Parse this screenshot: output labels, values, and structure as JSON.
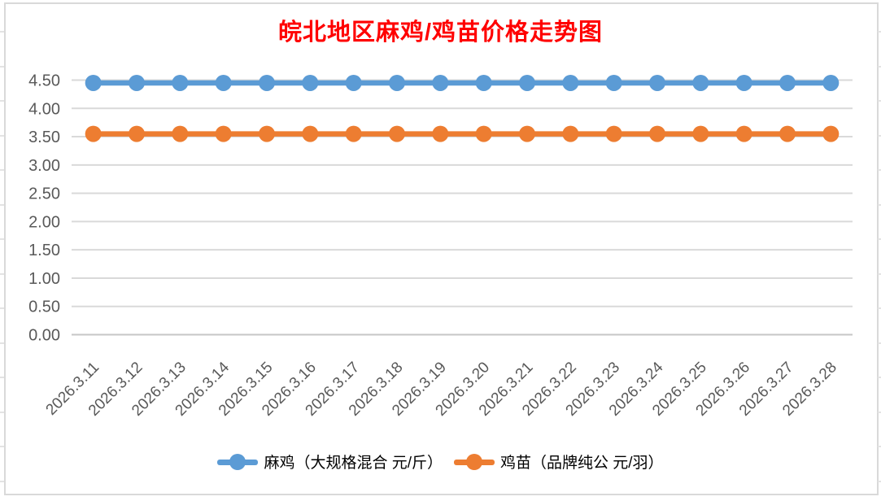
{
  "chart": {
    "title": "皖北地区麻鸡/鸡苗价格走势图",
    "title_color": "#FF0000",
    "axis_label_color": "#595959",
    "gridline_color": "#D9D9D9",
    "axis_line_color": "#C6C6C6",
    "border_color": "#D9D9D9",
    "background_color": "#FFFFFF"
  },
  "chart_data": {
    "type": "line",
    "title": "皖北地区麻鸡/鸡苗价格走势图",
    "xlabel": "",
    "ylabel": "",
    "ylim": [
      0,
      4.5
    ],
    "ytick_step": 0.5,
    "ytick_labels": [
      "0.00",
      "0.50",
      "1.00",
      "1.50",
      "2.00",
      "2.50",
      "3.00",
      "3.50",
      "4.00",
      "4.50"
    ],
    "grid": true,
    "legend_position": "bottom",
    "categories": [
      "2026.3.11",
      "2026.3.12",
      "2026.3.13",
      "2026.3.14",
      "2026.3.15",
      "2026.3.16",
      "2026.3.17",
      "2026.3.18",
      "2026.3.19",
      "2026.3.20",
      "2026.3.21",
      "2026.3.22",
      "2026.3.23",
      "2026.3.24",
      "2026.3.25",
      "2026.3.26",
      "2026.3.27",
      "2026.3.28"
    ],
    "series": [
      {
        "name": "麻鸡（大规格混合 元/斤）",
        "color": "#5B9BD5",
        "values": [
          4.45,
          4.45,
          4.45,
          4.45,
          4.45,
          4.45,
          4.45,
          4.45,
          4.45,
          4.45,
          4.45,
          4.45,
          4.45,
          4.45,
          4.45,
          4.45,
          4.45,
          4.45
        ]
      },
      {
        "name": "鸡苗（品牌纯公 元/羽）",
        "color": "#ED7D31",
        "values": [
          3.55,
          3.55,
          3.55,
          3.55,
          3.55,
          3.55,
          3.55,
          3.55,
          3.55,
          3.55,
          3.55,
          3.55,
          3.55,
          3.55,
          3.55,
          3.55,
          3.55,
          3.55
        ]
      }
    ]
  }
}
